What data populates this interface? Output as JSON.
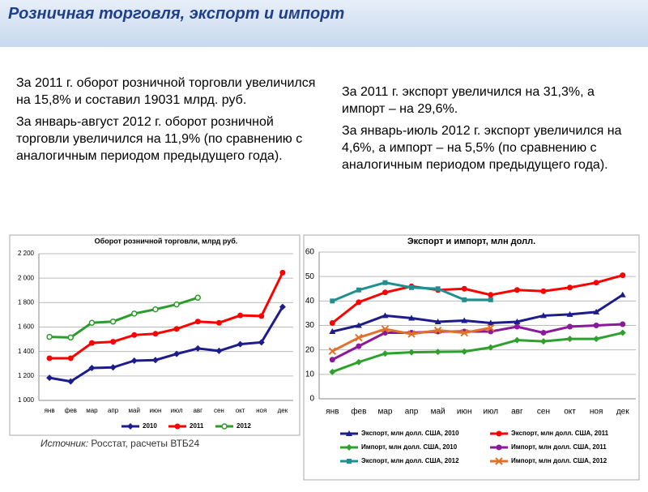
{
  "header": {
    "title": "Розничная торговля, экспорт и импорт"
  },
  "left_text": [
    "За 2011 г. оборот розничной торговли увеличился на 15,8% и составил 19031 млрд. руб.",
    "За январь-август 2012 г. оборот розничной торговли увеличился на 11,9% (по сравнению с аналогичным периодом предыдущего года)."
  ],
  "right_text": [
    "За 2011 г. экспорт увеличился на 31,3%, а импорт – на 29,6%.",
    "За январь-июль 2012 г. экспорт увеличился на 4,6%, а импорт – на 5,5% (по сравнению с аналогичным периодом предыдущего года)."
  ],
  "source": {
    "label": "Источник:",
    "text": "Росстат, расчеты ВТБ24"
  },
  "chart_data": [
    {
      "type": "line",
      "title": "Оборот розничной торговли, млрд руб.",
      "categories": [
        "янв",
        "фев",
        "мар",
        "апр",
        "май",
        "июн",
        "июл",
        "авг",
        "сен",
        "окт",
        "ноя",
        "дек"
      ],
      "ylim": [
        1000,
        2200
      ],
      "yticks": [
        {
          "value": 1000,
          "label": "1 000"
        },
        {
          "value": 1200,
          "label": "1 200"
        },
        {
          "value": 1400,
          "label": "1 400"
        },
        {
          "value": 1600,
          "label": "1 600"
        },
        {
          "value": 1800,
          "label": "1 800"
        },
        {
          "value": 2000,
          "label": "2 000"
        },
        {
          "value": 2200,
          "label": "2 200"
        }
      ],
      "grid": true,
      "legend": "bottom",
      "series": [
        {
          "name": "2010",
          "color": "#1c1c8c",
          "marker": "diamond",
          "values": [
            1185,
            1155,
            1265,
            1270,
            1325,
            1330,
            1380,
            1425,
            1405,
            1460,
            1475,
            1765
          ]
        },
        {
          "name": "2011",
          "color": "#ff0000",
          "marker": "circle",
          "values": [
            1345,
            1345,
            1470,
            1480,
            1535,
            1545,
            1585,
            1645,
            1635,
            1695,
            1690,
            2045
          ]
        },
        {
          "name": "2012",
          "color": "#2e9b2e",
          "marker": "hollow",
          "values": [
            1520,
            1515,
            1635,
            1645,
            1710,
            1745,
            1785,
            1840,
            null,
            null,
            null,
            null
          ]
        }
      ]
    },
    {
      "type": "line",
      "title": "Экспорт и импорт, млн долл.",
      "categories": [
        "янв",
        "фев",
        "мар",
        "апр",
        "май",
        "июн",
        "июл",
        "авг",
        "сен",
        "окт",
        "ноя",
        "дек"
      ],
      "ylim": [
        0,
        60
      ],
      "yticks": [
        0,
        10,
        20,
        30,
        40,
        50,
        60
      ],
      "grid": true,
      "legend": "bottom",
      "series": [
        {
          "name": "Экспорт, млн долл. США, 2010",
          "color": "#1c1c8c",
          "marker": "triangle",
          "values": [
            27.5,
            30,
            34,
            33,
            31.5,
            32,
            31,
            31.5,
            34,
            34.5,
            35.5,
            42.5
          ]
        },
        {
          "name": "Экспорт, млн долл. США, 2011",
          "color": "#ff0000",
          "marker": "circle",
          "values": [
            31,
            39.5,
            43.5,
            46,
            44.5,
            45,
            42.5,
            44.5,
            44,
            45.5,
            47.5,
            50.5
          ]
        },
        {
          "name": "Импорт, млн долл. США, 2010",
          "color": "#2ea02e",
          "marker": "diamond",
          "values": [
            11,
            15,
            18.5,
            19,
            19.2,
            19.3,
            21,
            24,
            23.5,
            24.5,
            24.5,
            27
          ]
        },
        {
          "name": "Импорт, млн долл. США, 2011",
          "color": "#8b1a9b",
          "marker": "circle",
          "values": [
            16,
            21.5,
            27,
            27,
            27.5,
            27.5,
            27.5,
            29.5,
            27,
            29.5,
            30,
            30.5
          ]
        },
        {
          "name": "Экспорт, млн долл. США, 2012",
          "color": "#1f8f8f",
          "marker": "square",
          "values": [
            40,
            44.5,
            47.5,
            45.5,
            45,
            40.5,
            40.5,
            null,
            null,
            null,
            null,
            null
          ]
        },
        {
          "name": "Импорт, млн долл. США, 2012",
          "color": "#e0702a",
          "marker": "x",
          "values": [
            19.5,
            25,
            28.5,
            26.5,
            28,
            27,
            29,
            null,
            null,
            null,
            null,
            null
          ]
        }
      ]
    }
  ]
}
